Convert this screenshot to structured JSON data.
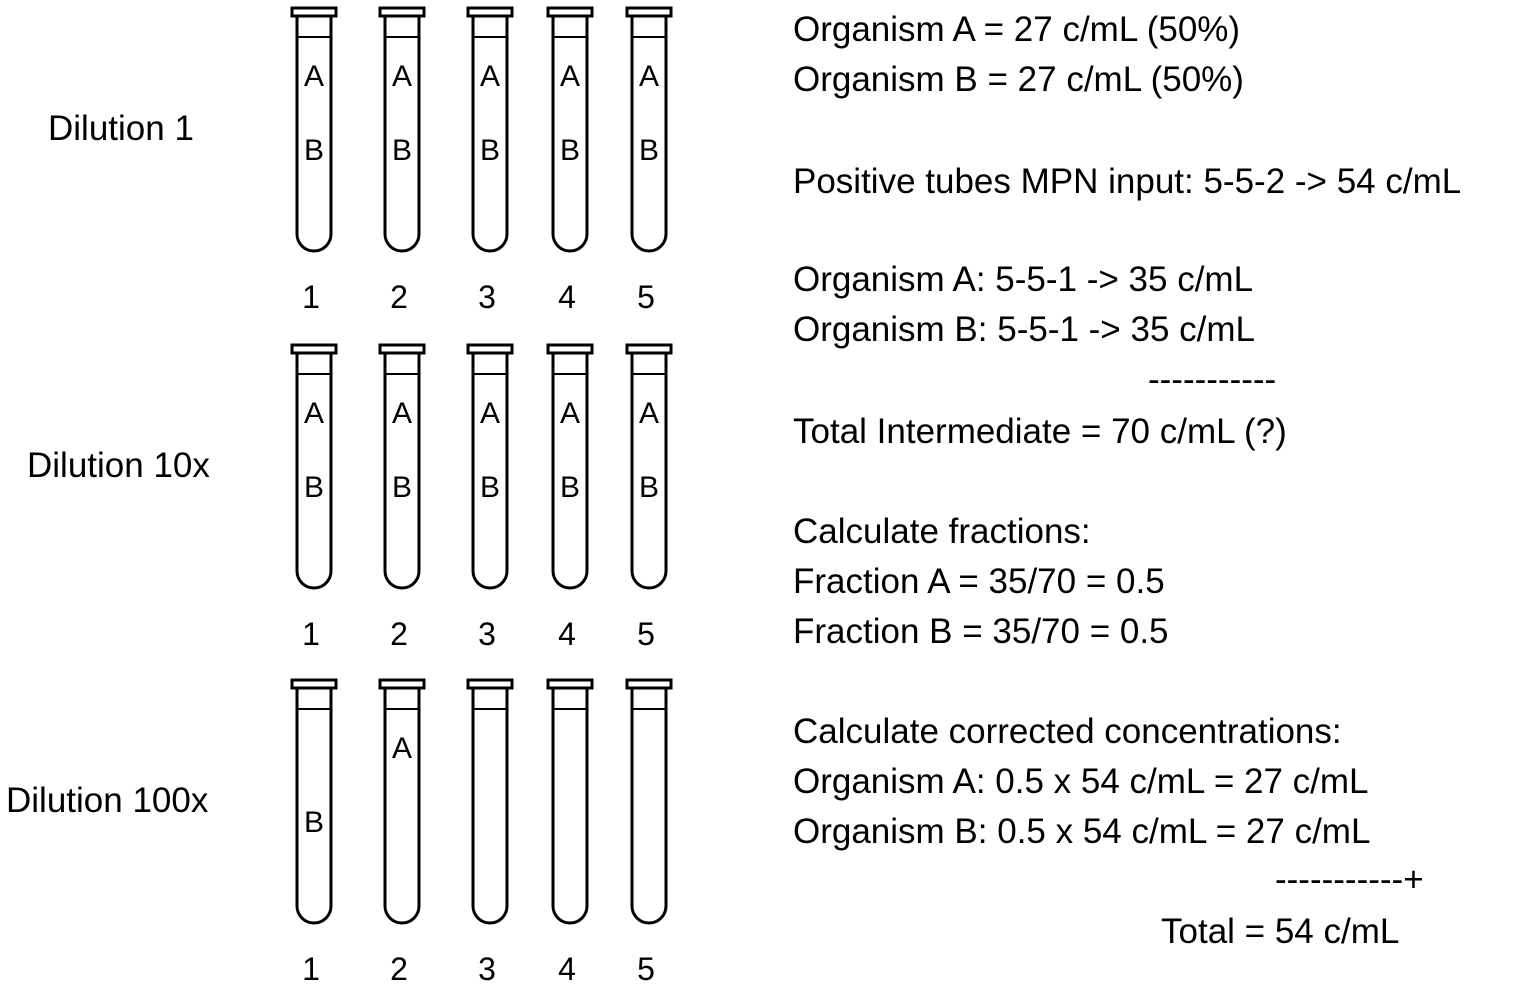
{
  "dilutions": [
    {
      "label": "Dilution 1",
      "tubes": [
        {
          "number": "1",
          "contents": [
            "A",
            "B"
          ]
        },
        {
          "number": "2",
          "contents": [
            "A",
            "B"
          ]
        },
        {
          "number": "3",
          "contents": [
            "A",
            "B"
          ]
        },
        {
          "number": "4",
          "contents": [
            "A",
            "B"
          ]
        },
        {
          "number": "5",
          "contents": [
            "A",
            "B"
          ]
        }
      ]
    },
    {
      "label": "Dilution 10x",
      "tubes": [
        {
          "number": "1",
          "contents": [
            "A",
            "B"
          ]
        },
        {
          "number": "2",
          "contents": [
            "A",
            "B"
          ]
        },
        {
          "number": "3",
          "contents": [
            "A",
            "B"
          ]
        },
        {
          "number": "4",
          "contents": [
            "A",
            "B"
          ]
        },
        {
          "number": "5",
          "contents": [
            "A",
            "B"
          ]
        }
      ]
    },
    {
      "label": "Dilution 100x",
      "tubes": [
        {
          "number": "1",
          "contents": [
            "B"
          ]
        },
        {
          "number": "2",
          "contents": [
            "A"
          ]
        },
        {
          "number": "3",
          "contents": []
        },
        {
          "number": "4",
          "contents": []
        },
        {
          "number": "5",
          "contents": []
        }
      ]
    }
  ],
  "calculation": {
    "organism_a_actual": "Organism A = 27 c/mL (50%)",
    "organism_b_actual": "Organism B = 27 c/mL (50%)",
    "mpn_input": "Positive tubes MPN input: 5-5-2 -> 54 c/mL",
    "organism_a_mpn": "Organism A: 5-5-1 -> 35 c/mL",
    "organism_b_mpn": "Organism B: 5-5-1 -> 35 c/mL",
    "separator_1": "-----------",
    "total_intermediate": "Total Intermediate = 70 c/mL (?)",
    "fractions_heading": "Calculate fractions:",
    "fraction_a": "Fraction A = 35/70 = 0.5",
    "fraction_b": "Fraction B = 35/70 = 0.5",
    "corrected_heading": "Calculate corrected concentrations:",
    "corrected_a": "Organism A: 0.5 x 54 c/mL = 27 c/mL",
    "corrected_b": "Organism B: 0.5 x 54 c/mL = 27 c/mL",
    "separator_2": "-----------+",
    "total": "Total = 54 c/mL"
  }
}
